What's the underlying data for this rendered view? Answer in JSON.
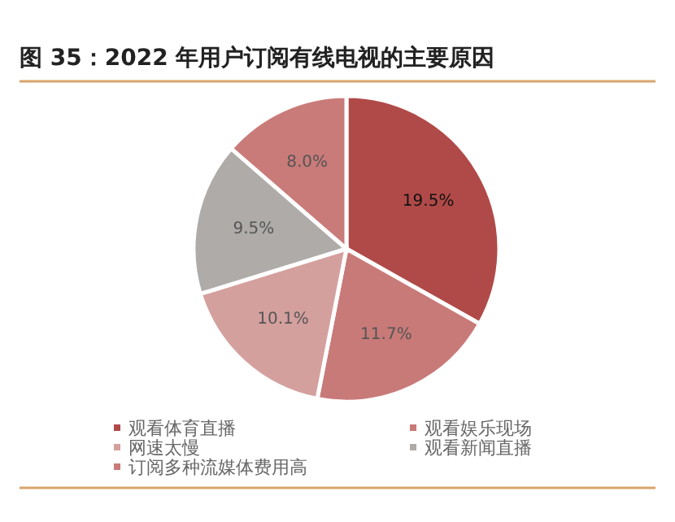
{
  "chart_data": {
    "type": "pie",
    "title": "图 35：2022 年用户订阅有线电视的主要原因",
    "categories": [
      "观看体育直播",
      "观看娱乐现场",
      "网速太慢",
      "观看新闻直播",
      "订阅多种流媒体费用高"
    ],
    "values": [
      19.5,
      11.7,
      10.1,
      9.5,
      8.0
    ],
    "value_labels": [
      "19.5%",
      "11.7%",
      "10.1%",
      "9.5%",
      "8.0%"
    ],
    "colors": [
      "#b04a48",
      "#c87a78",
      "#d4a09e",
      "#aeaba9",
      "#c97b79"
    ],
    "legend": "bottom"
  }
}
